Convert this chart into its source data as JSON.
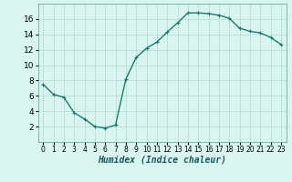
{
  "x": [
    0,
    1,
    2,
    3,
    4,
    5,
    6,
    7,
    8,
    9,
    10,
    11,
    12,
    13,
    14,
    15,
    16,
    17,
    18,
    19,
    20,
    21,
    22,
    23
  ],
  "y": [
    7.5,
    6.2,
    5.8,
    3.8,
    3.0,
    2.0,
    1.8,
    2.2,
    8.2,
    11.0,
    12.2,
    13.0,
    14.3,
    15.5,
    16.8,
    16.8,
    16.7,
    16.5,
    16.1,
    14.8,
    14.4,
    14.2,
    13.6,
    12.7
  ],
  "line_color": "#1a7a6e",
  "marker": "+",
  "marker_size": 3,
  "background_color": "#d8f5f0",
  "grid_color": "#b8ddd8",
  "xlabel": "Humidex (Indice chaleur)",
  "xlim": [
    -0.5,
    23.5
  ],
  "ylim": [
    0,
    18
  ],
  "yticks": [
    2,
    4,
    6,
    8,
    10,
    12,
    14,
    16
  ],
  "xticks": [
    0,
    1,
    2,
    3,
    4,
    5,
    6,
    7,
    8,
    9,
    10,
    11,
    12,
    13,
    14,
    15,
    16,
    17,
    18,
    19,
    20,
    21,
    22,
    23
  ],
  "xlabel_fontsize": 7,
  "ytick_fontsize": 6.5,
  "xtick_fontsize": 5.5,
  "line_width": 1.0
}
